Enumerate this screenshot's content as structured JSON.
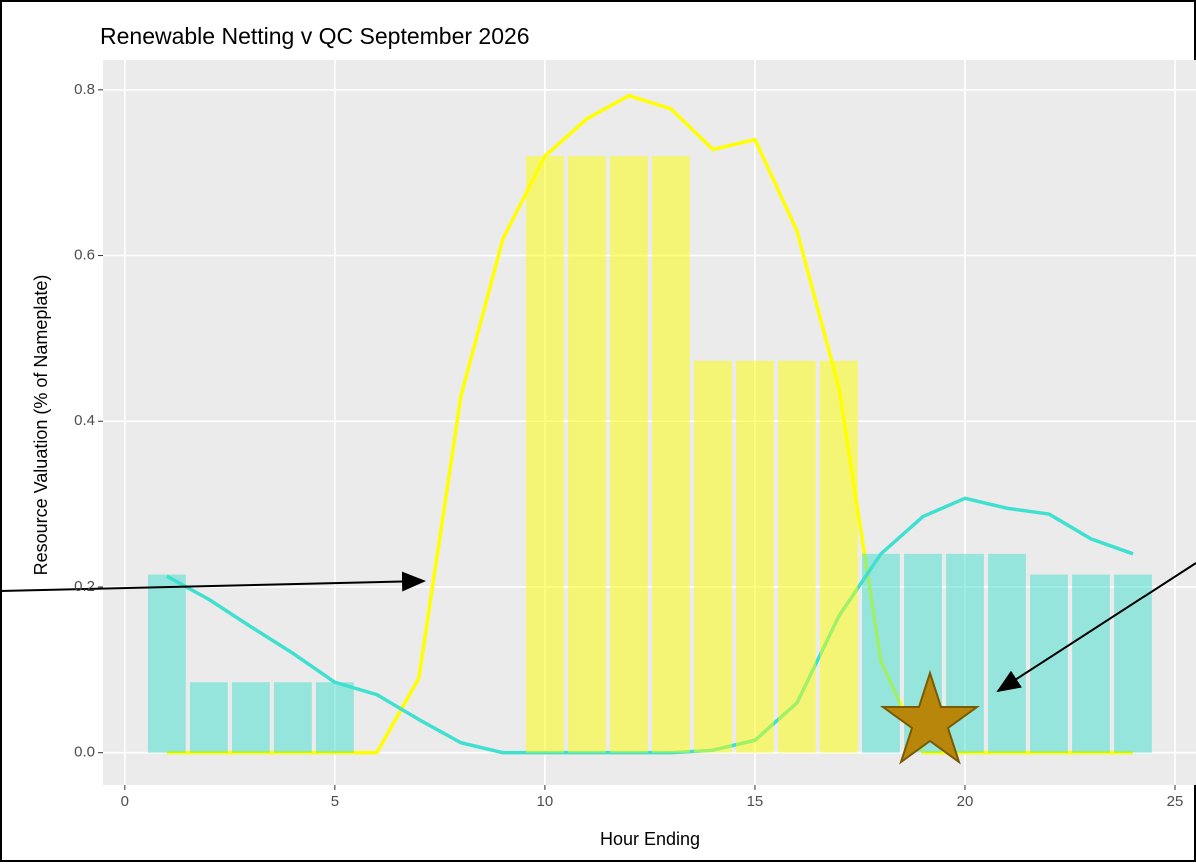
{
  "chart_data": {
    "type": "bar",
    "title": "Renewable Netting v QC September 2026",
    "x_label": "Hour Ending",
    "y_label": "Resource Valuation (% of Nameplate)",
    "x": [
      1,
      2,
      3,
      4,
      5,
      6,
      7,
      8,
      9,
      10,
      11,
      12,
      13,
      14,
      15,
      16,
      17,
      18,
      19,
      20,
      21,
      22,
      23,
      24
    ],
    "series": [
      {
        "mark": "line",
        "color": "#ffff00",
        "values": [
          0,
          0,
          0,
          0,
          0,
          0,
          0.09,
          0.43,
          0.62,
          0.72,
          0.765,
          0.793,
          0.777,
          0.728,
          0.74,
          0.63,
          0.44,
          0.11,
          0,
          0,
          0,
          0,
          0,
          0
        ]
      },
      {
        "mark": "line",
        "color": "#40e0d0",
        "values": [
          0.213,
          0.185,
          0.152,
          0.12,
          0.085,
          0.07,
          0.04,
          0.012,
          0,
          0,
          0,
          0,
          0,
          0.003,
          0.015,
          0.06,
          0.165,
          0.24,
          0.285,
          0.307,
          0.295,
          0.288,
          0.258,
          0.24
        ]
      },
      {
        "mark": "bar",
        "color": "#ffff00",
        "values": [
          0,
          0,
          0,
          0,
          0,
          0,
          0,
          0,
          0,
          0.72,
          0.72,
          0.72,
          0.72,
          0.473,
          0.473,
          0.473,
          0.473,
          0,
          0,
          0,
          0,
          0,
          0,
          0
        ]
      },
      {
        "mark": "bar",
        "color": "#40e0d0",
        "values": [
          0.215,
          0.085,
          0.085,
          0.085,
          0.085,
          0,
          0,
          0,
          0,
          0,
          0,
          0,
          0,
          0,
          0,
          0,
          0,
          0.24,
          0.24,
          0.24,
          0.24,
          0.215,
          0.215,
          0.215
        ]
      }
    ],
    "xlim": [
      -0.52,
      25.5
    ],
    "xticks": [
      0,
      5,
      10,
      15,
      20,
      25
    ],
    "ylim": [
      -0.039,
      0.836
    ],
    "yticks": [
      {
        "value": 0,
        "label": "0.0"
      },
      0.2,
      0.4,
      0.6,
      0.8
    ],
    "grid": true,
    "bar_opacity": 0.5
  }
}
